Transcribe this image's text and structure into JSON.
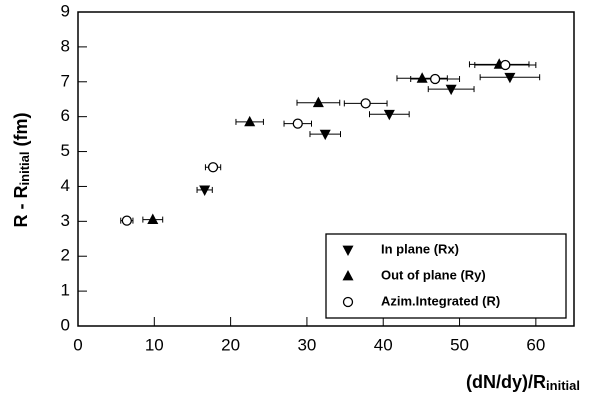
{
  "chart_data": {
    "type": "scatter",
    "x_label": {
      "main": "(dN/dy)/R",
      "sub": "initial"
    },
    "y_label": {
      "main": "R - R",
      "sub": "initial",
      "unit": " (fm)"
    },
    "xlim": [
      0,
      65
    ],
    "ylim": [
      0,
      9
    ],
    "xticks": [
      0,
      10,
      20,
      30,
      40,
      50,
      60
    ],
    "yticks": [
      0,
      1,
      2,
      3,
      4,
      5,
      6,
      7,
      8,
      9
    ],
    "legend": "lower right",
    "series": [
      {
        "name": "In plane (Rx)",
        "marker": "triangle-down",
        "color": "#000000",
        "x": [
          16.6,
          32.4,
          40.8,
          48.9,
          56.6
        ],
        "values": [
          3.9,
          5.5,
          6.07,
          6.79,
          7.13
        ],
        "xerr": [
          1.0,
          2.0,
          2.6,
          3.0,
          3.9
        ]
      },
      {
        "name": "Out of plane (Ry)",
        "marker": "triangle-up",
        "color": "#000000",
        "x": [
          9.8,
          22.5,
          31.5,
          45.1,
          55.2
        ],
        "values": [
          3.05,
          5.85,
          6.4,
          7.1,
          7.5
        ],
        "xerr": [
          1.3,
          1.8,
          2.8,
          3.3,
          3.9
        ]
      },
      {
        "name": "Azim.Integrated (R)",
        "marker": "circle",
        "color": "#000000",
        "x": [
          6.4,
          17.7,
          28.8,
          37.7,
          46.8,
          56.0
        ],
        "values": [
          3.02,
          4.55,
          5.8,
          6.38,
          7.08,
          7.48
        ],
        "xerr": [
          0.8,
          1.0,
          1.8,
          2.8,
          3.2,
          4.0
        ]
      }
    ]
  }
}
